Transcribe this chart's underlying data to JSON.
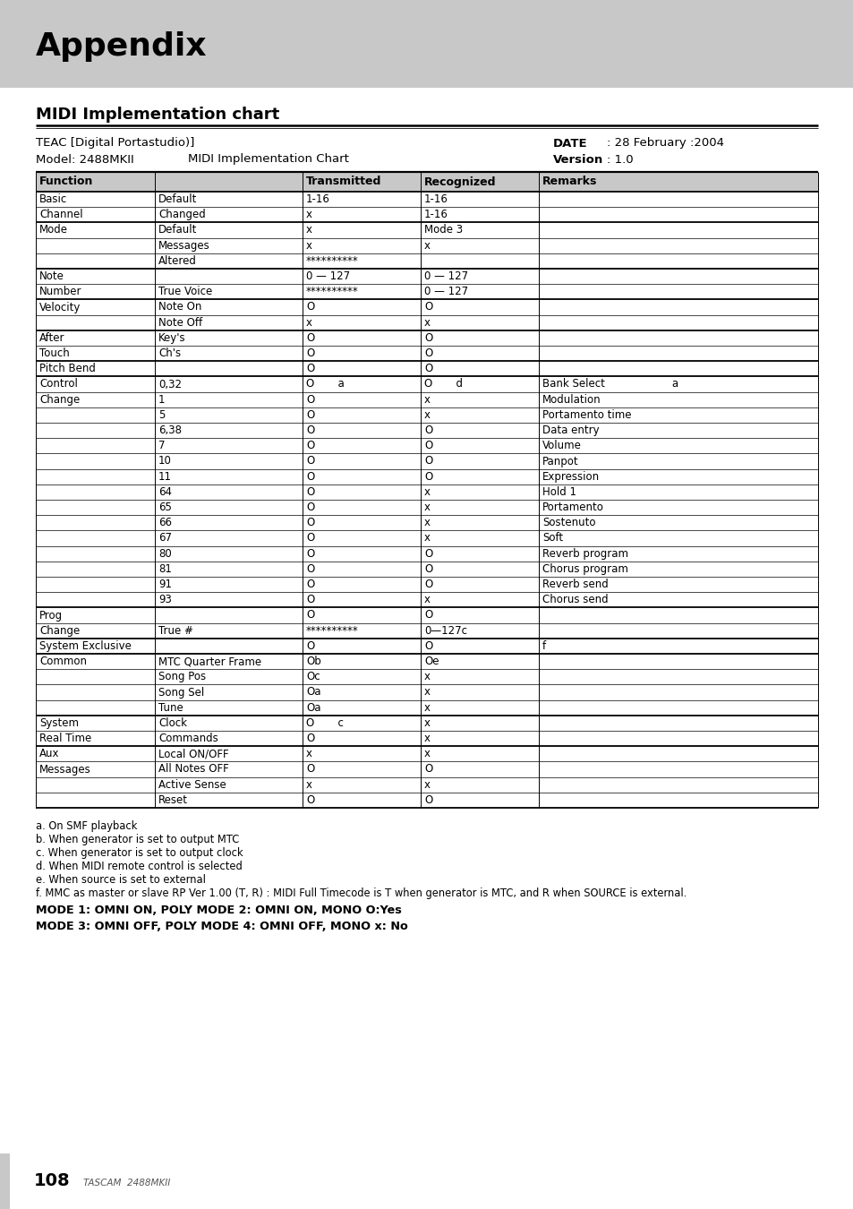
{
  "title": "Appendix",
  "section_title": "MIDI Implementation chart",
  "teac_line": "TEAC [Digital Portastudio)]",
  "date_label": "DATE",
  "date_value": ": 28 February :2004",
  "model_line": "Model: 2488MKII",
  "chart_label": "MIDI Implementation Chart",
  "version_label": "Version",
  "version_value": ": 1.0",
  "header_bg": "#c8c8c8",
  "rows": [
    [
      "Basic",
      "Default",
      "1-16",
      "1-16",
      ""
    ],
    [
      "Channel",
      "Changed",
      "x",
      "1-16",
      ""
    ],
    [
      "Mode",
      "Default",
      "x",
      "Mode 3",
      ""
    ],
    [
      "",
      "Messages",
      "x",
      "x",
      ""
    ],
    [
      "",
      "Altered",
      "**********",
      "",
      ""
    ],
    [
      "Note",
      "",
      "0 — 127",
      "0 — 127",
      ""
    ],
    [
      "Number",
      "True Voice",
      "**********",
      "0 — 127",
      ""
    ],
    [
      "Velocity",
      "Note On",
      "O",
      "O",
      ""
    ],
    [
      "",
      "Note Off",
      "x",
      "x",
      ""
    ],
    [
      "After",
      "Key's",
      "O",
      "O",
      ""
    ],
    [
      "Touch",
      "Ch's",
      "O",
      "O",
      ""
    ],
    [
      "Pitch Bend",
      "",
      "O",
      "O",
      ""
    ],
    [
      "Control",
      "0,32",
      "O       a",
      "O       d",
      "Bank Select                    a"
    ],
    [
      "Change",
      "1",
      "O",
      "x",
      "Modulation"
    ],
    [
      "",
      "5",
      "O",
      "x",
      "Portamento time"
    ],
    [
      "",
      "6,38",
      "O",
      "O",
      "Data entry"
    ],
    [
      "",
      "7",
      "O",
      "O",
      "Volume"
    ],
    [
      "",
      "10",
      "O",
      "O",
      "Panpot"
    ],
    [
      "",
      "11",
      "O",
      "O",
      "Expression"
    ],
    [
      "",
      "64",
      "O",
      "x",
      "Hold 1"
    ],
    [
      "",
      "65",
      "O",
      "x",
      "Portamento"
    ],
    [
      "",
      "66",
      "O",
      "x",
      "Sostenuto"
    ],
    [
      "",
      "67",
      "O",
      "x",
      "Soft"
    ],
    [
      "",
      "80",
      "O",
      "O",
      "Reverb program"
    ],
    [
      "",
      "81",
      "O",
      "O",
      "Chorus program"
    ],
    [
      "",
      "91",
      "O",
      "O",
      "Reverb send"
    ],
    [
      "",
      "93",
      "O",
      "x",
      "Chorus send"
    ],
    [
      "Prog",
      "",
      "O",
      "O",
      ""
    ],
    [
      "Change",
      "True #",
      "**********",
      "0—127c",
      ""
    ],
    [
      "System Exclusive",
      "",
      "O",
      "O",
      "f"
    ],
    [
      "Common",
      "MTC Quarter Frame",
      "Ob",
      "Oe",
      ""
    ],
    [
      "",
      "Song Pos",
      "Oc",
      "x",
      ""
    ],
    [
      "",
      "Song Sel",
      "Oa",
      "x",
      ""
    ],
    [
      "",
      "Tune",
      "Oa",
      "x",
      ""
    ],
    [
      "System",
      "Clock",
      "O       c",
      "x",
      ""
    ],
    [
      "Real Time",
      "Commands",
      "O",
      "x",
      ""
    ],
    [
      "Aux",
      "Local ON/OFF",
      "x",
      "x",
      ""
    ],
    [
      "Messages",
      "All Notes OFF",
      "O",
      "O",
      ""
    ],
    [
      "",
      "Active Sense",
      "x",
      "x",
      ""
    ],
    [
      "",
      "Reset",
      "O",
      "O",
      ""
    ]
  ],
  "group_borders_after": [
    1,
    4,
    6,
    8,
    10,
    11,
    26,
    28,
    29,
    33,
    35,
    39
  ],
  "footnotes": [
    "a. On SMF playback",
    "b. When generator is set to output MTC",
    "c. When generator is set to output clock",
    "d. When MIDI remote control is selected",
    "e. When source is set to external",
    "f. MMC as master or slave RP Ver 1.00 (T, R) : MIDI Full Timecode is T when generator is MTC, and R when SOURCE is external."
  ],
  "mode_lines": [
    "MODE 1: OMNI ON, POLY MODE 2: OMNI ON, MONO O:Yes",
    "MODE 3: OMNI OFF, POLY MODE 4: OMNI OFF, MONO x: No"
  ],
  "page_number": "108",
  "page_brand": "TASCAM  2488MKII"
}
